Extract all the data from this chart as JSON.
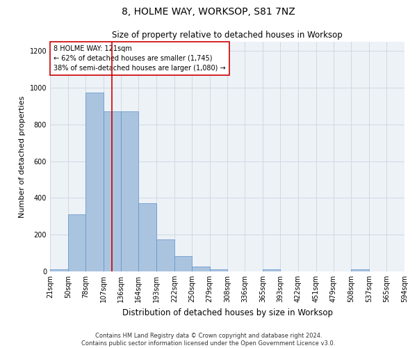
{
  "title": "8, HOLME WAY, WORKSOP, S81 7NZ",
  "subtitle": "Size of property relative to detached houses in Worksop",
  "xlabel": "Distribution of detached houses by size in Worksop",
  "ylabel": "Number of detached properties",
  "footer_line1": "Contains HM Land Registry data © Crown copyright and database right 2024.",
  "footer_line2": "Contains public sector information licensed under the Open Government Licence v3.0.",
  "annotation_title": "8 HOLME WAY: 121sqm",
  "annotation_line2": "← 62% of detached houses are smaller (1,745)",
  "annotation_line3": "38% of semi-detached houses are larger (1,080) →",
  "property_sqm": 121,
  "bar_edges": [
    21,
    50,
    78,
    107,
    136,
    164,
    193,
    222,
    250,
    279,
    308,
    336,
    365,
    393,
    422,
    451,
    479,
    508,
    537,
    565,
    594
  ],
  "bar_heights": [
    12,
    310,
    975,
    870,
    870,
    370,
    175,
    85,
    28,
    10,
    0,
    0,
    10,
    0,
    0,
    0,
    0,
    12,
    0,
    0,
    0
  ],
  "bar_color": "#aac4e0",
  "bar_edge_color": "#5b8fc9",
  "vline_color": "#cc0000",
  "vline_x": 121,
  "annotation_box_color": "#cc0000",
  "annotation_bg": "#ffffff",
  "grid_color": "#d0d8e4",
  "bg_color": "#edf2f7",
  "ylim": [
    0,
    1250
  ],
  "yticks": [
    0,
    200,
    400,
    600,
    800,
    1000,
    1200
  ],
  "title_fontsize": 10,
  "subtitle_fontsize": 8.5,
  "ylabel_fontsize": 8,
  "xlabel_fontsize": 8.5,
  "tick_fontsize": 7,
  "footer_fontsize": 6,
  "annotation_fontsize": 7
}
